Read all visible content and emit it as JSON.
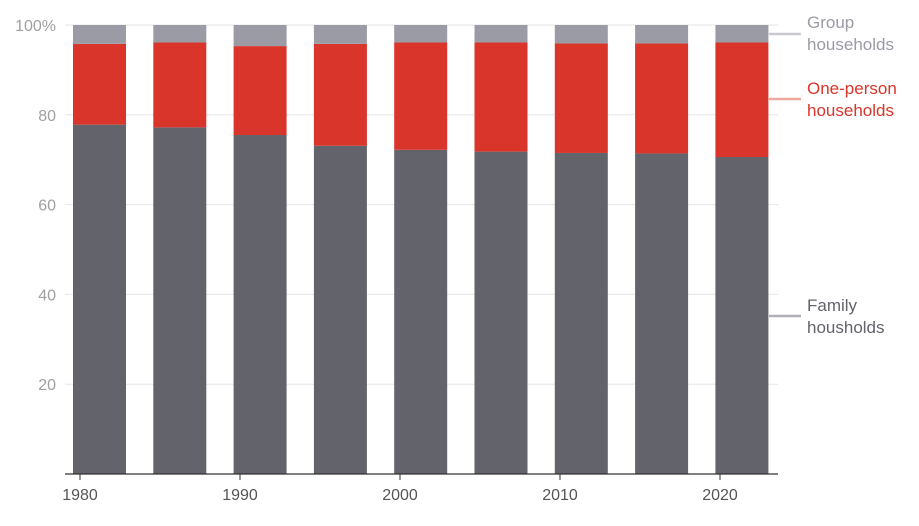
{
  "chart_data": {
    "type": "bar",
    "stacked": true,
    "categories": [
      "1980",
      "1986",
      "1991",
      "1996",
      "2001",
      "2006",
      "2011",
      "2016",
      "2021"
    ],
    "x_tick_labels": [
      "1980",
      "1990",
      "2000",
      "2010",
      "2020"
    ],
    "y_tick_labels": [
      "20",
      "40",
      "60",
      "80",
      "100%"
    ],
    "y_ticks": [
      20,
      40,
      60,
      80,
      100
    ],
    "ylim": [
      0,
      100
    ],
    "grid": true,
    "legend_placement": "right, inline labels",
    "series": [
      {
        "name": "Family housholds",
        "color": "#63636b",
        "values": [
          77.8,
          77.2,
          75.5,
          73.1,
          72.2,
          71.8,
          71.5,
          71.4,
          70.6
        ]
      },
      {
        "name": "One-person households",
        "color": "#d9352a",
        "values": [
          18.0,
          18.9,
          19.8,
          22.7,
          23.9,
          24.3,
          24.4,
          24.5,
          25.5
        ]
      },
      {
        "name": "Group households",
        "color": "#9b9ba5",
        "values": [
          4.2,
          3.9,
          4.7,
          4.2,
          3.9,
          3.9,
          4.1,
          4.1,
          3.9
        ]
      }
    ],
    "legend": [
      {
        "line1": "Group",
        "line2": "households",
        "color": "#9b9ba5",
        "line_color": "#c9c9d1"
      },
      {
        "line1": "One-person",
        "line2": "households",
        "color": "#d9352a",
        "line_color": "#f0a8a0"
      },
      {
        "line1": "Family",
        "line2": "housholds",
        "color": "#63636b",
        "line_color": "#b0b0b6"
      }
    ]
  }
}
